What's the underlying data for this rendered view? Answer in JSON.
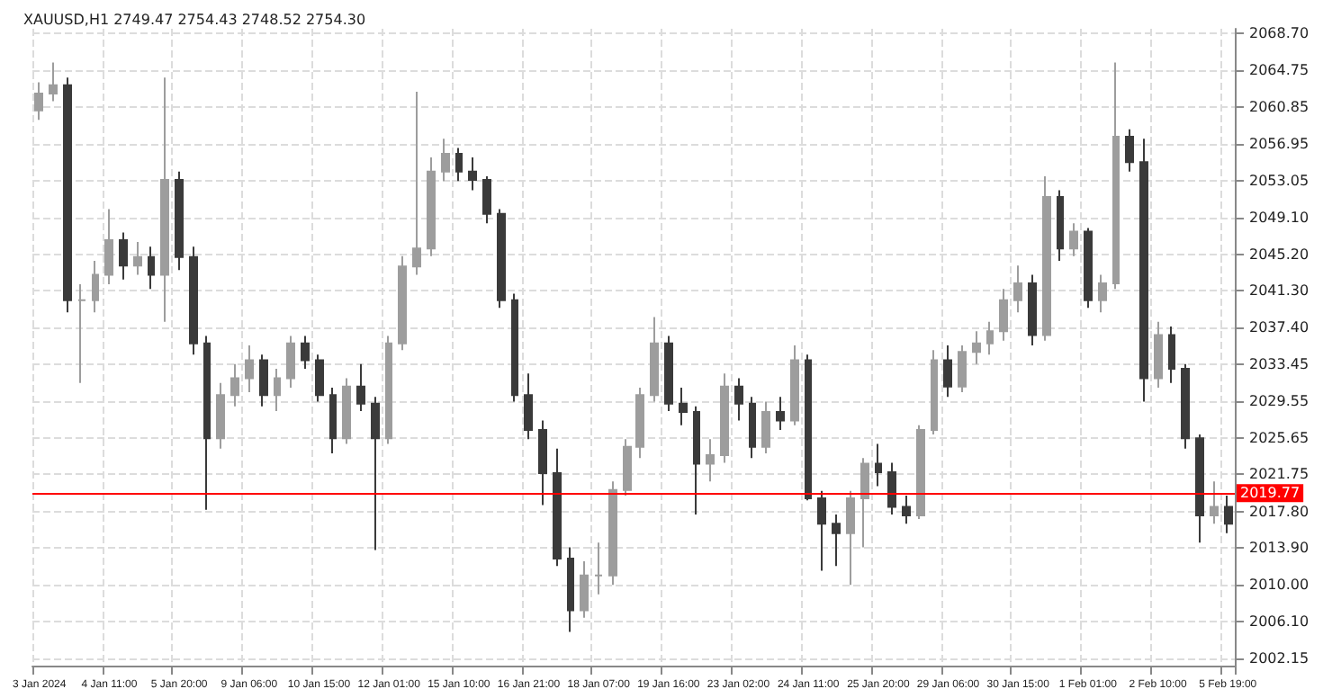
{
  "chart_data": {
    "type": "candlestick",
    "title": "XAUUSD,H1 2749.47 2754.43 2748.52 2754.30",
    "categories": [
      "3 Jan 2024",
      null,
      null,
      null,
      null,
      "4 Jan 11:00",
      null,
      null,
      null,
      null,
      "5 Jan 20:00",
      null,
      null,
      null,
      null,
      "9 Jan 06:00",
      null,
      null,
      null,
      null,
      "10 Jan 15:00",
      null,
      null,
      null,
      null,
      "12 Jan 01:00",
      null,
      null,
      null,
      null,
      "15 Jan 10:00",
      null,
      null,
      null,
      null,
      "16 Jan 21:00",
      null,
      null,
      null,
      null,
      "18 Jan 07:00",
      null,
      null,
      null,
      null,
      "19 Jan 16:00",
      null,
      null,
      null,
      null,
      "23 Jan 02:00",
      null,
      null,
      null,
      null,
      "24 Jan 11:00",
      null,
      null,
      null,
      null,
      "25 Jan 20:00",
      null,
      null,
      null,
      null,
      "29 Jan 06:00",
      null,
      null,
      null,
      null,
      "30 Jan 15:00",
      null,
      null,
      null,
      null,
      "1 Feb 01:00",
      null,
      null,
      null,
      null,
      "2 Feb 10:00",
      null,
      null,
      null,
      null,
      "5 Feb 19:00"
    ],
    "ohlc": [
      [
        2060.5,
        2063.5,
        2059.5,
        2062.3
      ],
      [
        2062.3,
        2065.6,
        2061.5,
        2063.2
      ],
      [
        2063.2,
        2064.0,
        2039.0,
        2040.3
      ],
      [
        2040.3,
        2042.0,
        2031.5,
        2040.3
      ],
      [
        2040.3,
        2044.5,
        2039.0,
        2043.0
      ],
      [
        2043.0,
        2050.0,
        2042.0,
        2046.7
      ],
      [
        2046.7,
        2047.5,
        2042.5,
        2044.0
      ],
      [
        2044.0,
        2046.5,
        2043.0,
        2044.9
      ],
      [
        2044.9,
        2046.0,
        2041.5,
        2043.0
      ],
      [
        2043.0,
        2064.0,
        2038.0,
        2053.1
      ],
      [
        2053.1,
        2054.0,
        2043.5,
        2044.9
      ],
      [
        2044.9,
        2046.0,
        2034.5,
        2035.7
      ],
      [
        2035.7,
        2036.5,
        2018.0,
        2025.6
      ],
      [
        2025.6,
        2031.5,
        2024.5,
        2030.2
      ],
      [
        2030.2,
        2033.5,
        2029.0,
        2032.0
      ],
      [
        2032.0,
        2035.5,
        2030.5,
        2033.9
      ],
      [
        2033.9,
        2034.5,
        2029.0,
        2030.2
      ],
      [
        2030.2,
        2033.0,
        2028.5,
        2032.0
      ],
      [
        2032.0,
        2036.5,
        2031.0,
        2035.7
      ],
      [
        2035.7,
        2036.5,
        2033.0,
        2033.9
      ],
      [
        2033.9,
        2034.5,
        2029.5,
        2030.2
      ],
      [
        2030.2,
        2031.0,
        2024.0,
        2025.6
      ],
      [
        2025.6,
        2032.0,
        2025.0,
        2031.1
      ],
      [
        2031.1,
        2033.5,
        2028.5,
        2029.3
      ],
      [
        2029.3,
        2030.0,
        2013.7,
        2025.6
      ],
      [
        2025.6,
        2036.5,
        2025.0,
        2035.7
      ],
      [
        2035.7,
        2045.0,
        2035.0,
        2043.9
      ],
      [
        2043.9,
        2062.5,
        2043.0,
        2045.8
      ],
      [
        2045.8,
        2055.5,
        2045.0,
        2054.0
      ],
      [
        2054.0,
        2057.5,
        2053.0,
        2055.9
      ],
      [
        2055.9,
        2056.5,
        2053.0,
        2054.0
      ],
      [
        2054.0,
        2055.5,
        2052.0,
        2053.1
      ],
      [
        2053.1,
        2053.5,
        2048.5,
        2049.5
      ],
      [
        2049.5,
        2050.0,
        2039.5,
        2040.3
      ],
      [
        2040.3,
        2041.0,
        2029.5,
        2030.2
      ],
      [
        2030.2,
        2032.5,
        2025.5,
        2026.5
      ],
      [
        2026.5,
        2027.5,
        2018.5,
        2021.9
      ],
      [
        2021.9,
        2024.5,
        2012.0,
        2012.8
      ],
      [
        2012.8,
        2014.0,
        2005.0,
        2007.3
      ],
      [
        2007.3,
        2012.5,
        2006.5,
        2011.0
      ],
      [
        2011.0,
        2014.5,
        2009.0,
        2011.0
      ],
      [
        2011.0,
        2021.0,
        2010.0,
        2020.1
      ],
      [
        2020.1,
        2025.5,
        2019.5,
        2024.7
      ],
      [
        2024.7,
        2031.0,
        2023.5,
        2030.2
      ],
      [
        2030.2,
        2038.5,
        2029.5,
        2035.7
      ],
      [
        2035.7,
        2036.5,
        2028.5,
        2029.3
      ],
      [
        2029.3,
        2031.0,
        2027.0,
        2028.4
      ],
      [
        2028.4,
        2029.0,
        2017.5,
        2022.9
      ],
      [
        2022.9,
        2025.5,
        2021.0,
        2023.8
      ],
      [
        2023.8,
        2032.5,
        2023.0,
        2031.1
      ],
      [
        2031.1,
        2032.0,
        2027.5,
        2029.3
      ],
      [
        2029.3,
        2030.0,
        2023.5,
        2024.7
      ],
      [
        2024.7,
        2029.5,
        2024.0,
        2028.4
      ],
      [
        2028.4,
        2030.0,
        2026.5,
        2027.5
      ],
      [
        2027.5,
        2035.5,
        2027.0,
        2033.9
      ],
      [
        2033.9,
        2034.5,
        2019.0,
        2019.2
      ],
      [
        2019.2,
        2020.0,
        2011.5,
        2016.5
      ],
      [
        2016.5,
        2017.5,
        2012.0,
        2015.5
      ],
      [
        2015.5,
        2020.0,
        2010.0,
        2019.2
      ],
      [
        2019.2,
        2023.5,
        2014.0,
        2022.9
      ],
      [
        2022.9,
        2025.0,
        2020.5,
        2022.0
      ],
      [
        2022.0,
        2023.0,
        2017.5,
        2018.3
      ],
      [
        2018.3,
        2019.5,
        2016.5,
        2017.4
      ],
      [
        2017.4,
        2027.0,
        2017.0,
        2026.5
      ],
      [
        2026.5,
        2035.0,
        2026.0,
        2033.9
      ],
      [
        2033.9,
        2035.5,
        2030.0,
        2031.1
      ],
      [
        2031.1,
        2035.5,
        2030.5,
        2034.8
      ],
      [
        2034.8,
        2037.0,
        2033.5,
        2035.7
      ],
      [
        2035.7,
        2038.0,
        2034.5,
        2037.0
      ],
      [
        2037.0,
        2041.5,
        2036.0,
        2040.3
      ],
      [
        2040.3,
        2044.0,
        2039.0,
        2042.1
      ],
      [
        2042.1,
        2043.0,
        2035.5,
        2036.6
      ],
      [
        2036.6,
        2053.5,
        2036.0,
        2051.3
      ],
      [
        2051.3,
        2052.0,
        2044.5,
        2045.8
      ],
      [
        2045.8,
        2048.5,
        2045.0,
        2047.6
      ],
      [
        2047.6,
        2048.0,
        2039.5,
        2040.3
      ],
      [
        2040.3,
        2043.0,
        2039.0,
        2042.1
      ],
      [
        2042.1,
        2065.6,
        2041.5,
        2057.7
      ],
      [
        2057.7,
        2058.5,
        2054.0,
        2055.0
      ],
      [
        2055.0,
        2057.5,
        2029.5,
        2032.0
      ],
      [
        2032.0,
        2038.0,
        2031.0,
        2036.6
      ],
      [
        2036.6,
        2037.5,
        2031.5,
        2033.0
      ],
      [
        2033.0,
        2033.5,
        2024.5,
        2025.6
      ],
      [
        2025.6,
        2026.0,
        2014.5,
        2017.4
      ],
      [
        2017.4,
        2021.0,
        2016.5,
        2018.3
      ],
      [
        2018.3,
        2019.5,
        2015.5,
        2016.5
      ]
    ],
    "colors": [
      "#9d9d9d",
      "#9d9d9d",
      "#3a3a3a",
      "#9d9d9d",
      "#9d9d9d",
      "#9d9d9d",
      "#3a3a3a",
      "#9d9d9d",
      "#3a3a3a",
      "#9d9d9d",
      "#3a3a3a",
      "#3a3a3a",
      "#3a3a3a",
      "#9d9d9d",
      "#9d9d9d",
      "#9d9d9d",
      "#3a3a3a",
      "#9d9d9d",
      "#9d9d9d",
      "#3a3a3a",
      "#3a3a3a",
      "#3a3a3a",
      "#9d9d9d",
      "#3a3a3a",
      "#3a3a3a",
      "#9d9d9d",
      "#9d9d9d",
      "#9d9d9d",
      "#9d9d9d",
      "#9d9d9d",
      "#3a3a3a",
      "#3a3a3a",
      "#3a3a3a",
      "#3a3a3a",
      "#3a3a3a",
      "#3a3a3a",
      "#3a3a3a",
      "#3a3a3a",
      "#3a3a3a",
      "#9d9d9d",
      "#9d9d9d",
      "#9d9d9d",
      "#9d9d9d",
      "#9d9d9d",
      "#9d9d9d",
      "#3a3a3a",
      "#3a3a3a",
      "#3a3a3a",
      "#9d9d9d",
      "#9d9d9d",
      "#3a3a3a",
      "#3a3a3a",
      "#9d9d9d",
      "#3a3a3a",
      "#9d9d9d",
      "#3a3a3a",
      "#3a3a3a",
      "#3a3a3a",
      "#9d9d9d",
      "#9d9d9d",
      "#3a3a3a",
      "#3a3a3a",
      "#3a3a3a",
      "#9d9d9d",
      "#9d9d9d",
      "#3a3a3a",
      "#9d9d9d",
      "#9d9d9d",
      "#9d9d9d",
      "#9d9d9d",
      "#9d9d9d",
      "#3a3a3a",
      "#9d9d9d",
      "#3a3a3a",
      "#9d9d9d",
      "#3a3a3a",
      "#9d9d9d",
      "#9d9d9d",
      "#3a3a3a",
      "#3a3a3a",
      "#9d9d9d",
      "#3a3a3a",
      "#3a3a3a",
      "#3a3a3a",
      "#9d9d9d",
      "#3a3a3a"
    ],
    "ylim": [
      2001.4,
      2069.2
    ],
    "yticks": [
      {
        "value": 2002.15,
        "label": "2002.15"
      },
      {
        "value": 2006.1,
        "label": "2006.10"
      },
      {
        "value": 2010.0,
        "label": "2010.00"
      },
      {
        "value": 2013.9,
        "label": "2013.90"
      },
      {
        "value": 2017.8,
        "label": "2017.80"
      },
      {
        "value": 2021.75,
        "label": "2021.75"
      },
      {
        "value": 2025.65,
        "label": "2025.65"
      },
      {
        "value": 2029.55,
        "label": "2029.55"
      },
      {
        "value": 2033.45,
        "label": "2033.45"
      },
      {
        "value": 2037.4,
        "label": "2037.40"
      },
      {
        "value": 2041.3,
        "label": "2041.30"
      },
      {
        "value": 2045.2,
        "label": "2045.20"
      },
      {
        "value": 2049.1,
        "label": "2049.10"
      },
      {
        "value": 2053.05,
        "label": "2053.05"
      },
      {
        "value": 2056.95,
        "label": "2056.95"
      },
      {
        "value": 2060.85,
        "label": "2060.85"
      },
      {
        "value": 2064.75,
        "label": "2064.75"
      },
      {
        "value": 2068.7,
        "label": "2068.70"
      }
    ],
    "ref_lines": [
      {
        "axis": "y",
        "value": 2019.77,
        "label": "2019.77",
        "color": "#ff0000"
      }
    ],
    "grid": true
  }
}
